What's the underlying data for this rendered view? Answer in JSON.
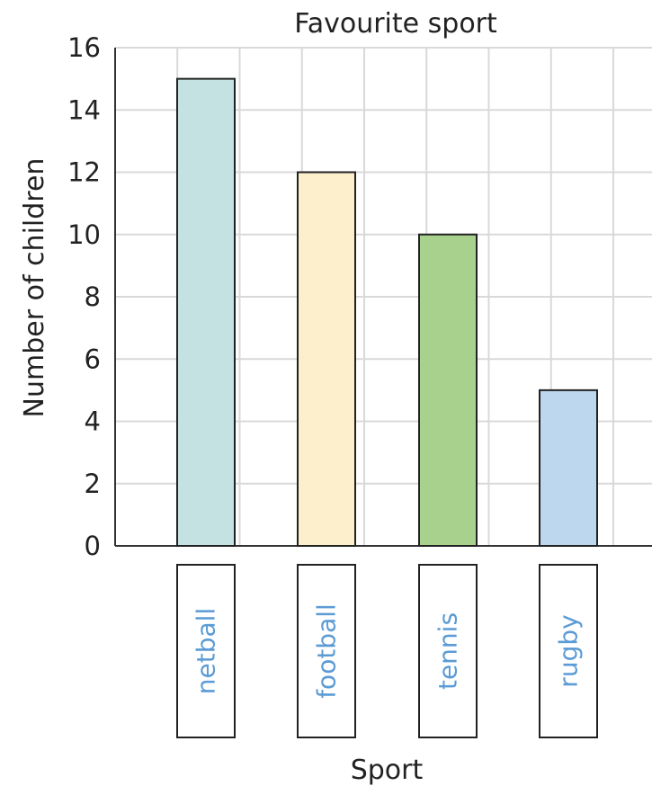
{
  "chart_data": {
    "type": "bar",
    "title": "Favourite sport",
    "xlabel": "Sport",
    "ylabel": "Number of children",
    "categories": [
      "netball",
      "football",
      "tennis",
      "rugby"
    ],
    "values": [
      15,
      12,
      10,
      5
    ],
    "ylim": [
      0,
      16
    ],
    "yticks": [
      "0",
      "2",
      "4",
      "6",
      "8",
      "10",
      "12",
      "14",
      "16"
    ],
    "grid": true,
    "bar_colors": [
      "#c5e2e2",
      "#fdefcc",
      "#a9d18e",
      "#bdd7ee"
    ],
    "category_label_color": "#5b9bd5"
  }
}
